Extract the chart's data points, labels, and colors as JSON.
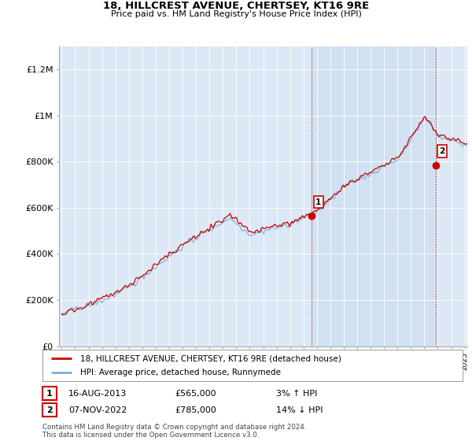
{
  "title": "18, HILLCREST AVENUE, CHERTSEY, KT16 9RE",
  "subtitle": "Price paid vs. HM Land Registry's House Price Index (HPI)",
  "legend_line1": "18, HILLCREST AVENUE, CHERTSEY, KT16 9RE (detached house)",
  "legend_line2": "HPI: Average price, detached house, Runnymede",
  "annotation1_label": "1",
  "annotation1_date": "16-AUG-2013",
  "annotation1_price": "£565,000",
  "annotation1_change": "3% ↑ HPI",
  "annotation2_label": "2",
  "annotation2_date": "07-NOV-2022",
  "annotation2_price": "£785,000",
  "annotation2_change": "14% ↓ HPI",
  "footnote": "Contains HM Land Registry data © Crown copyright and database right 2024.\nThis data is licensed under the Open Government Licence v3.0.",
  "hpi_color": "#7ab0d4",
  "price_color": "#cc0000",
  "dashed_line_color": "#cc0000",
  "plot_bg_color": "#dce8f5",
  "shade_color": "#c5d9ee",
  "ylim": [
    0,
    1300000
  ],
  "yticks": [
    0,
    200000,
    400000,
    600000,
    800000,
    1000000,
    1200000
  ],
  "ytick_labels": [
    "£0",
    "£200K",
    "£400K",
    "£600K",
    "£800K",
    "£1M",
    "£1.2M"
  ],
  "xmin": 1995.0,
  "xmax": 2025.2,
  "sale1_x": 2013.62,
  "sale1_y": 565000,
  "sale2_x": 2022.84,
  "sale2_y": 785000
}
